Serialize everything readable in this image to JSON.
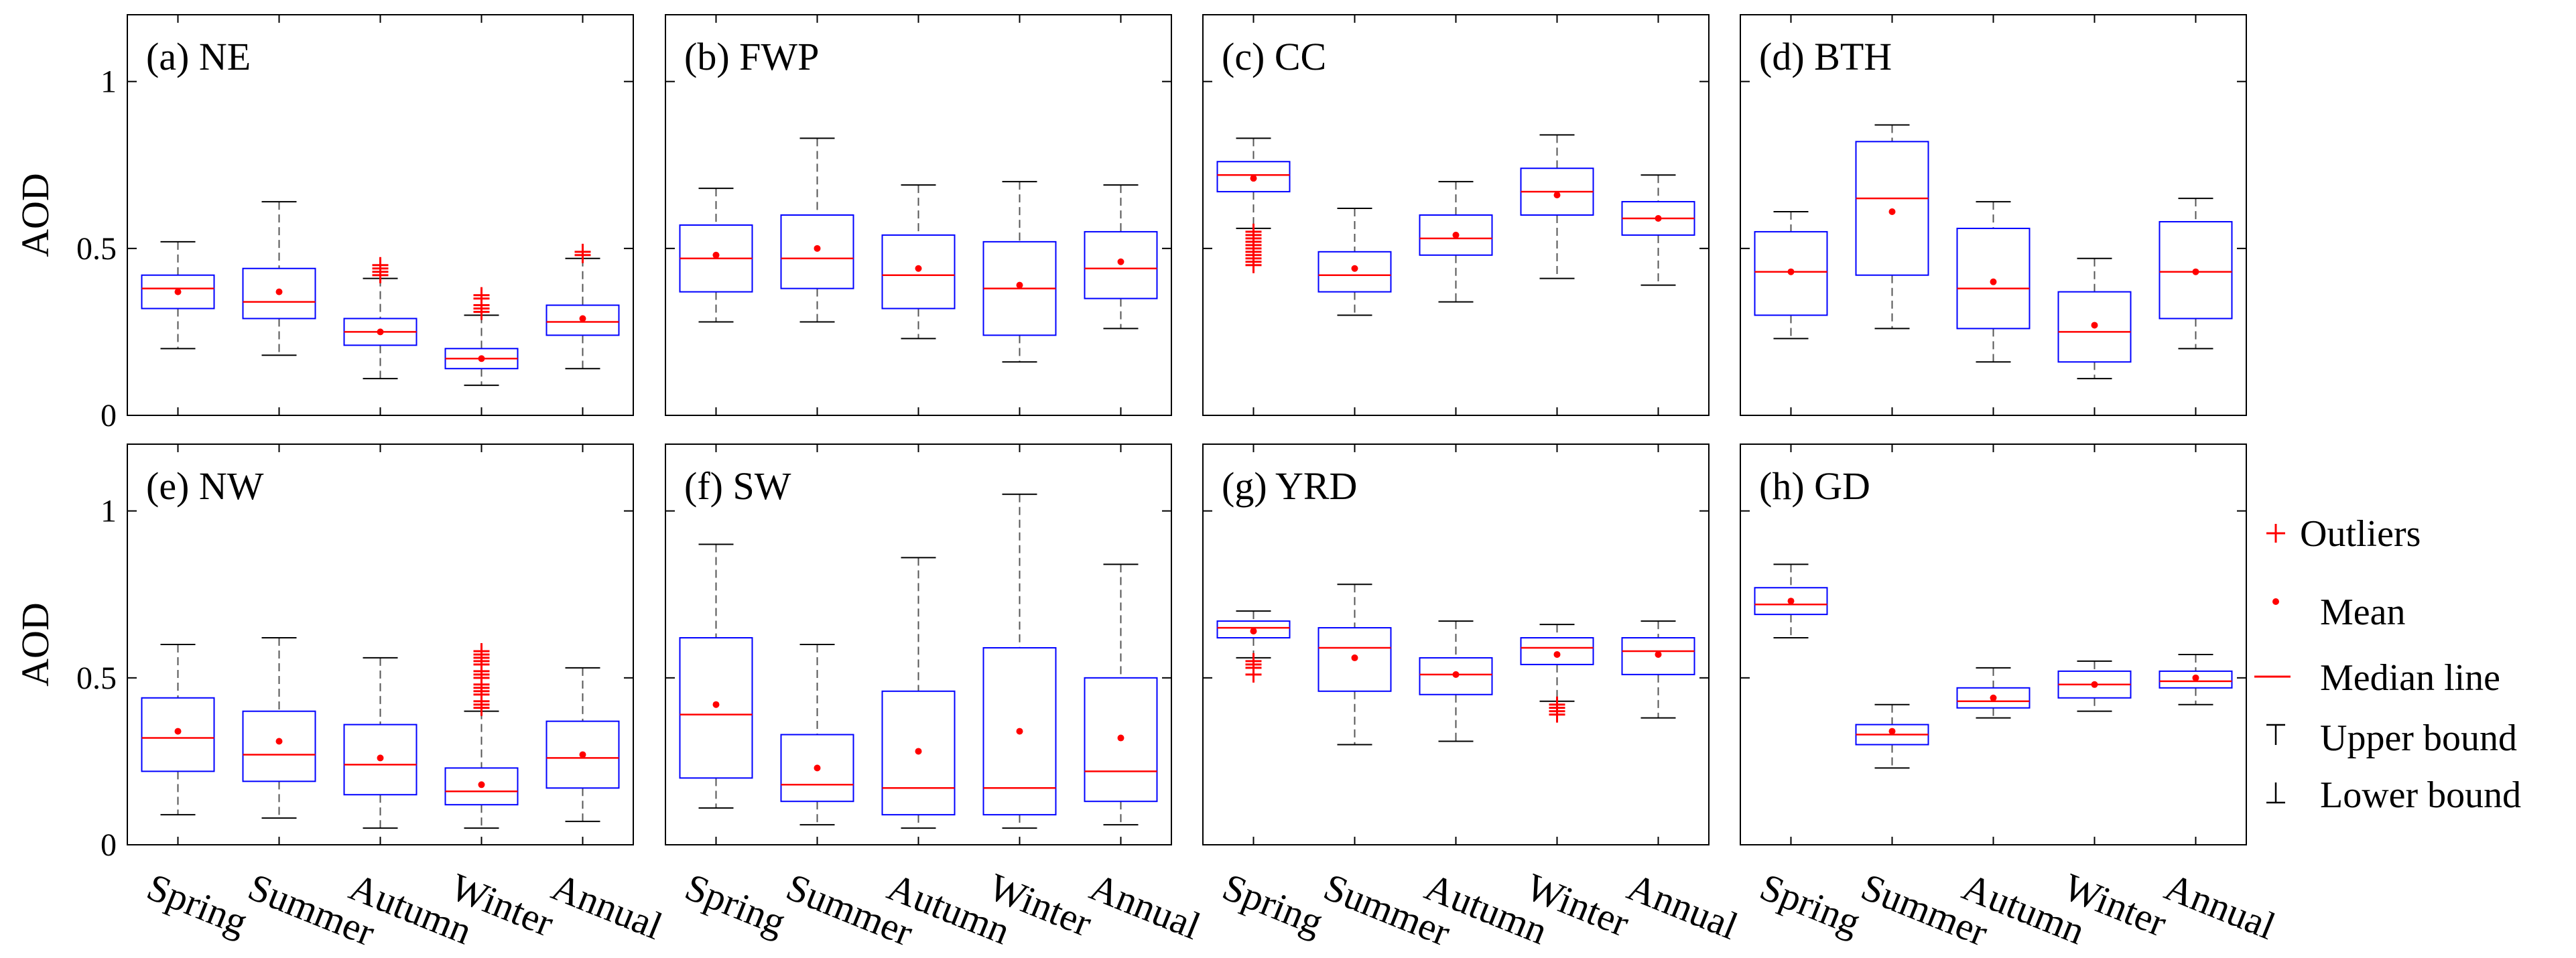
{
  "chart_data": {
    "type": "box",
    "ylabel": "AOD",
    "ylim": [
      0,
      1.2
    ],
    "yticks": [
      0,
      0.5,
      1
    ],
    "ytick_labels": [
      "0",
      "0.5",
      "1"
    ],
    "categories": [
      "Spring",
      "Summer",
      "Autumn",
      "Winter",
      "Annual"
    ],
    "colors": {
      "box": "#0000ff",
      "median": "#ff0000",
      "mean": "#ff0000",
      "outlier": "#ff0000",
      "whisker": "#555555"
    },
    "legend": {
      "outliers": "Outliers",
      "mean": "Mean",
      "median": "Median line",
      "upper": "Upper bound",
      "lower": "Lower bound"
    },
    "panels": [
      {
        "title": "(a) NE",
        "boxes": [
          {
            "min": 0.2,
            "q1": 0.32,
            "median": 0.38,
            "q3": 0.42,
            "max": 0.52,
            "mean": 0.37,
            "outliers": []
          },
          {
            "min": 0.18,
            "q1": 0.29,
            "median": 0.34,
            "q3": 0.44,
            "max": 0.64,
            "mean": 0.37,
            "outliers": []
          },
          {
            "min": 0.11,
            "q1": 0.21,
            "median": 0.25,
            "q3": 0.29,
            "max": 0.41,
            "mean": 0.25,
            "outliers": [
              0.42,
              0.43,
              0.44,
              0.45
            ]
          },
          {
            "min": 0.09,
            "q1": 0.14,
            "median": 0.17,
            "q3": 0.2,
            "max": 0.3,
            "mean": 0.17,
            "outliers": [
              0.31,
              0.32,
              0.33,
              0.35,
              0.36
            ]
          },
          {
            "min": 0.14,
            "q1": 0.24,
            "median": 0.28,
            "q3": 0.33,
            "max": 0.47,
            "mean": 0.29,
            "outliers": [
              0.48,
              0.49
            ]
          }
        ]
      },
      {
        "title": "(b) FWP",
        "boxes": [
          {
            "min": 0.28,
            "q1": 0.37,
            "median": 0.47,
            "q3": 0.57,
            "max": 0.68,
            "mean": 0.48,
            "outliers": []
          },
          {
            "min": 0.28,
            "q1": 0.38,
            "median": 0.47,
            "q3": 0.6,
            "max": 0.83,
            "mean": 0.5,
            "outliers": []
          },
          {
            "min": 0.23,
            "q1": 0.32,
            "median": 0.42,
            "q3": 0.54,
            "max": 0.69,
            "mean": 0.44,
            "outliers": []
          },
          {
            "min": 0.16,
            "q1": 0.24,
            "median": 0.38,
            "q3": 0.52,
            "max": 0.7,
            "mean": 0.39,
            "outliers": []
          },
          {
            "min": 0.26,
            "q1": 0.35,
            "median": 0.44,
            "q3": 0.55,
            "max": 0.69,
            "mean": 0.46,
            "outliers": []
          }
        ]
      },
      {
        "title": "(c) CC",
        "boxes": [
          {
            "min": 0.56,
            "q1": 0.67,
            "median": 0.72,
            "q3": 0.76,
            "max": 0.83,
            "mean": 0.71,
            "outliers": [
              0.45,
              0.46,
              0.47,
              0.48,
              0.49,
              0.5,
              0.51,
              0.52,
              0.53,
              0.54,
              0.55
            ]
          },
          {
            "min": 0.3,
            "q1": 0.37,
            "median": 0.42,
            "q3": 0.49,
            "max": 0.62,
            "mean": 0.44,
            "outliers": []
          },
          {
            "min": 0.34,
            "q1": 0.48,
            "median": 0.53,
            "q3": 0.6,
            "max": 0.7,
            "mean": 0.54,
            "outliers": []
          },
          {
            "min": 0.41,
            "q1": 0.6,
            "median": 0.67,
            "q3": 0.74,
            "max": 0.84,
            "mean": 0.66,
            "outliers": []
          },
          {
            "min": 0.39,
            "q1": 0.54,
            "median": 0.59,
            "q3": 0.64,
            "max": 0.72,
            "mean": 0.59,
            "outliers": []
          }
        ]
      },
      {
        "title": "(d) BTH",
        "boxes": [
          {
            "min": 0.23,
            "q1": 0.3,
            "median": 0.43,
            "q3": 0.55,
            "max": 0.61,
            "mean": 0.43,
            "outliers": []
          },
          {
            "min": 0.26,
            "q1": 0.42,
            "median": 0.65,
            "q3": 0.82,
            "max": 0.87,
            "mean": 0.61,
            "outliers": []
          },
          {
            "min": 0.16,
            "q1": 0.26,
            "median": 0.38,
            "q3": 0.56,
            "max": 0.64,
            "mean": 0.4,
            "outliers": []
          },
          {
            "min": 0.11,
            "q1": 0.16,
            "median": 0.25,
            "q3": 0.37,
            "max": 0.47,
            "mean": 0.27,
            "outliers": []
          },
          {
            "min": 0.2,
            "q1": 0.29,
            "median": 0.43,
            "q3": 0.58,
            "max": 0.65,
            "mean": 0.43,
            "outliers": []
          }
        ]
      },
      {
        "title": "(e) NW",
        "boxes": [
          {
            "min": 0.09,
            "q1": 0.22,
            "median": 0.32,
            "q3": 0.44,
            "max": 0.6,
            "mean": 0.34,
            "outliers": []
          },
          {
            "min": 0.08,
            "q1": 0.19,
            "median": 0.27,
            "q3": 0.4,
            "max": 0.62,
            "mean": 0.31,
            "outliers": []
          },
          {
            "min": 0.05,
            "q1": 0.15,
            "median": 0.24,
            "q3": 0.36,
            "max": 0.56,
            "mean": 0.26,
            "outliers": []
          },
          {
            "min": 0.05,
            "q1": 0.12,
            "median": 0.16,
            "q3": 0.23,
            "max": 0.4,
            "mean": 0.18,
            "outliers": [
              0.41,
              0.42,
              0.43,
              0.45,
              0.46,
              0.47,
              0.48,
              0.5,
              0.51,
              0.52,
              0.54,
              0.55,
              0.56,
              0.57,
              0.58
            ]
          },
          {
            "min": 0.07,
            "q1": 0.17,
            "median": 0.26,
            "q3": 0.37,
            "max": 0.53,
            "mean": 0.27,
            "outliers": []
          }
        ]
      },
      {
        "title": "(f) SW",
        "boxes": [
          {
            "min": 0.11,
            "q1": 0.2,
            "median": 0.39,
            "q3": 0.62,
            "max": 0.9,
            "mean": 0.42,
            "outliers": []
          },
          {
            "min": 0.06,
            "q1": 0.13,
            "median": 0.18,
            "q3": 0.33,
            "max": 0.6,
            "mean": 0.23,
            "outliers": []
          },
          {
            "min": 0.05,
            "q1": 0.09,
            "median": 0.17,
            "q3": 0.46,
            "max": 0.86,
            "mean": 0.28,
            "outliers": []
          },
          {
            "min": 0.05,
            "q1": 0.09,
            "median": 0.17,
            "q3": 0.59,
            "max": 1.05,
            "mean": 0.34,
            "outliers": []
          },
          {
            "min": 0.06,
            "q1": 0.13,
            "median": 0.22,
            "q3": 0.5,
            "max": 0.84,
            "mean": 0.32,
            "outliers": []
          }
        ]
      },
      {
        "title": "(g) YRD",
        "boxes": [
          {
            "min": 0.56,
            "q1": 0.62,
            "median": 0.65,
            "q3": 0.67,
            "max": 0.7,
            "mean": 0.64,
            "outliers": [
              0.51,
              0.53,
              0.54,
              0.55
            ]
          },
          {
            "min": 0.3,
            "q1": 0.46,
            "median": 0.59,
            "q3": 0.65,
            "max": 0.78,
            "mean": 0.56,
            "outliers": []
          },
          {
            "min": 0.31,
            "q1": 0.45,
            "median": 0.51,
            "q3": 0.56,
            "max": 0.67,
            "mean": 0.51,
            "outliers": []
          },
          {
            "min": 0.43,
            "q1": 0.54,
            "median": 0.59,
            "q3": 0.62,
            "max": 0.66,
            "mean": 0.57,
            "outliers": [
              0.39,
              0.4,
              0.41,
              0.42
            ]
          },
          {
            "min": 0.38,
            "q1": 0.51,
            "median": 0.58,
            "q3": 0.62,
            "max": 0.67,
            "mean": 0.57,
            "outliers": []
          }
        ]
      },
      {
        "title": "(h) GD",
        "boxes": [
          {
            "min": 0.62,
            "q1": 0.69,
            "median": 0.72,
            "q3": 0.77,
            "max": 0.84,
            "mean": 0.73,
            "outliers": []
          },
          {
            "min": 0.23,
            "q1": 0.3,
            "median": 0.33,
            "q3": 0.36,
            "max": 0.42,
            "mean": 0.34,
            "outliers": []
          },
          {
            "min": 0.38,
            "q1": 0.41,
            "median": 0.43,
            "q3": 0.47,
            "max": 0.53,
            "mean": 0.44,
            "outliers": []
          },
          {
            "min": 0.4,
            "q1": 0.44,
            "median": 0.48,
            "q3": 0.52,
            "max": 0.55,
            "mean": 0.48,
            "outliers": []
          },
          {
            "min": 0.42,
            "q1": 0.47,
            "median": 0.49,
            "q3": 0.52,
            "max": 0.57,
            "mean": 0.5,
            "outliers": []
          }
        ]
      }
    ]
  }
}
